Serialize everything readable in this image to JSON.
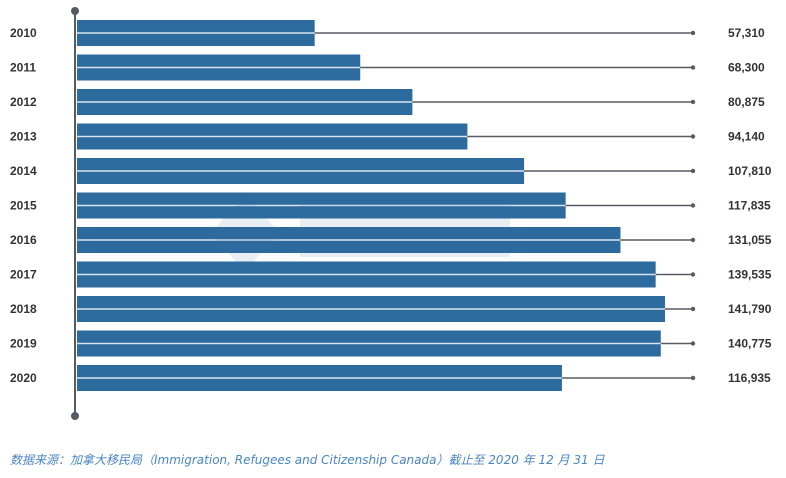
{
  "chart_data": {
    "type": "bar",
    "orientation": "horizontal",
    "categories": [
      "2010",
      "2011",
      "2012",
      "2013",
      "2014",
      "2015",
      "2016",
      "2017",
      "2018",
      "2019",
      "2020"
    ],
    "values": [
      57310,
      68300,
      80875,
      94140,
      107810,
      117835,
      131055,
      139535,
      141790,
      140775,
      116935
    ],
    "value_labels": [
      "57,310",
      "68,300",
      "80,875",
      "94,140",
      "107,810",
      "117,835",
      "131,055",
      "139,535",
      "141,790",
      "140,775",
      "116,935"
    ],
    "title": "",
    "xlabel": "",
    "ylabel": "",
    "xlim": [
      0,
      141790
    ],
    "grid": false,
    "bar_color": "#2d6a9e",
    "leader_color": "#555b63"
  },
  "footnote": {
    "source": "数据来源：加拿大移民局（Immigration, Refugees and Citizenship Canada）截止至 2020 年 12 月 31 日"
  }
}
